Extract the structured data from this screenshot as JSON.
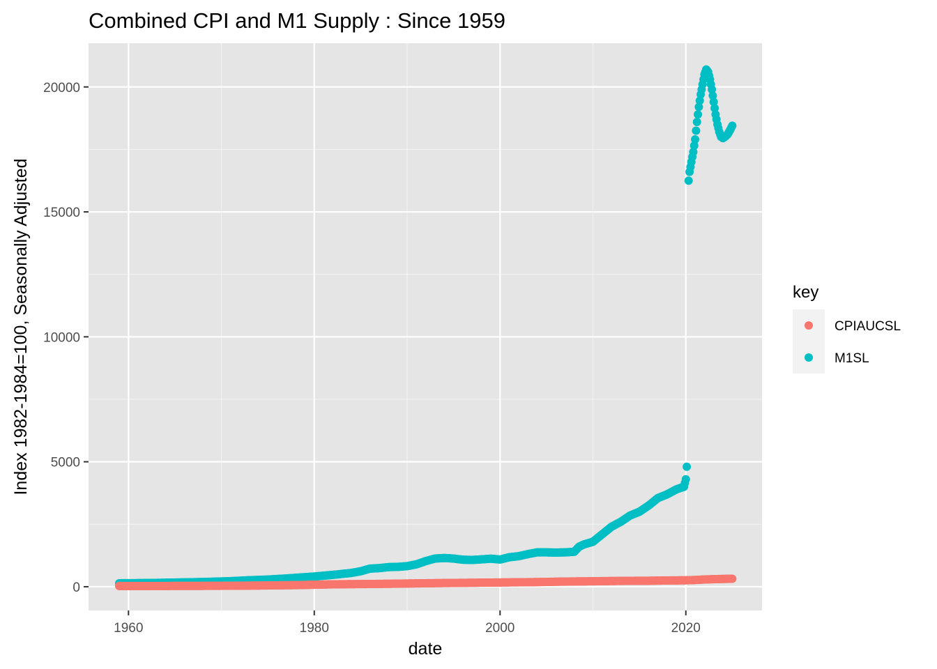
{
  "chart_data": {
    "type": "scatter",
    "title": "Combined CPI and M1 Supply : Since 1959",
    "xlabel": "date",
    "ylabel": "Index 1982-1984=100, Seasonally Adjusted",
    "xlim": [
      1955.7,
      2028.2
    ],
    "ylim": [
      -950,
      21750
    ],
    "x_ticks": [
      1960,
      1980,
      2000,
      2020
    ],
    "y_ticks": [
      0,
      5000,
      10000,
      15000,
      20000
    ],
    "grid": true,
    "background": "#e5e5e5",
    "legend": {
      "title": "key",
      "position": "right",
      "entries": [
        {
          "label": "CPIAUCSL",
          "color": "#f8766d"
        },
        {
          "label": "M1SL",
          "color": "#00bfc4"
        }
      ]
    },
    "series": [
      {
        "name": "CPIAUCSL",
        "color": "#f8766d",
        "points": [
          [
            1959.0,
            29
          ],
          [
            1962.0,
            30
          ],
          [
            1965.0,
            31.5
          ],
          [
            1968.0,
            34.5
          ],
          [
            1970.0,
            38
          ],
          [
            1972.0,
            41.5
          ],
          [
            1974.0,
            48
          ],
          [
            1976.0,
            56
          ],
          [
            1978.0,
            64
          ],
          [
            1980.0,
            80
          ],
          [
            1982.0,
            95
          ],
          [
            1984.0,
            103
          ],
          [
            1986.0,
            109
          ],
          [
            1988.0,
            117
          ],
          [
            1990.0,
            128
          ],
          [
            1992.0,
            139
          ],
          [
            1994.0,
            147
          ],
          [
            1996.0,
            155
          ],
          [
            1998.0,
            162
          ],
          [
            2000.0,
            170
          ],
          [
            2002.0,
            178
          ],
          [
            2004.0,
            186
          ],
          [
            2006.0,
            200
          ],
          [
            2008.0,
            212
          ],
          [
            2010.0,
            218
          ],
          [
            2012.0,
            228
          ],
          [
            2014.0,
            236
          ],
          [
            2016.0,
            240
          ],
          [
            2018.0,
            250
          ],
          [
            2020.0,
            257
          ],
          [
            2021.0,
            270
          ],
          [
            2022.0,
            290
          ],
          [
            2023.0,
            302
          ],
          [
            2024.0,
            312
          ],
          [
            2025.0,
            320
          ]
        ]
      },
      {
        "name": "M1SL",
        "color": "#00bfc4",
        "points": [
          [
            1959.0,
            139
          ],
          [
            1961.0,
            143
          ],
          [
            1963.0,
            153
          ],
          [
            1965.0,
            167
          ],
          [
            1967.0,
            181
          ],
          [
            1969.0,
            199
          ],
          [
            1971.0,
            223
          ],
          [
            1973.0,
            260
          ],
          [
            1975.0,
            287
          ],
          [
            1977.0,
            331
          ],
          [
            1979.0,
            383
          ],
          [
            1980.0,
            408
          ],
          [
            1982.0,
            475
          ],
          [
            1984.0,
            552
          ],
          [
            1985.0,
            620
          ],
          [
            1986.0,
            725
          ],
          [
            1987.0,
            745
          ],
          [
            1988.0,
            786
          ],
          [
            1989.0,
            795
          ],
          [
            1990.0,
            825
          ],
          [
            1991.0,
            897
          ],
          [
            1992.0,
            1025
          ],
          [
            1993.0,
            1129
          ],
          [
            1994.0,
            1150
          ],
          [
            1995.0,
            1127
          ],
          [
            1996.0,
            1081
          ],
          [
            1997.0,
            1072
          ],
          [
            1998.0,
            1095
          ],
          [
            1999.0,
            1122
          ],
          [
            2000.0,
            1088
          ],
          [
            2001.0,
            1180
          ],
          [
            2002.0,
            1220
          ],
          [
            2003.0,
            1306
          ],
          [
            2004.0,
            1376
          ],
          [
            2005.0,
            1374
          ],
          [
            2006.0,
            1367
          ],
          [
            2007.0,
            1374
          ],
          [
            2008.0,
            1400
          ],
          [
            2008.5,
            1600
          ],
          [
            2009.0,
            1690
          ],
          [
            2010.0,
            1800
          ],
          [
            2011.0,
            2100
          ],
          [
            2012.0,
            2400
          ],
          [
            2013.0,
            2600
          ],
          [
            2014.0,
            2850
          ],
          [
            2015.0,
            3000
          ],
          [
            2016.0,
            3250
          ],
          [
            2017.0,
            3550
          ],
          [
            2018.0,
            3700
          ],
          [
            2019.0,
            3900
          ],
          [
            2019.8,
            4000
          ],
          [
            2020.0,
            4300
          ],
          [
            2020.1,
            4800
          ],
          [
            2020.3,
            16250
          ],
          [
            2020.4,
            16600
          ],
          [
            2020.6,
            17000
          ],
          [
            2020.8,
            17400
          ],
          [
            2021.0,
            17900
          ],
          [
            2021.2,
            18600
          ],
          [
            2021.4,
            19200
          ],
          [
            2021.6,
            19700
          ],
          [
            2021.8,
            20100
          ],
          [
            2022.0,
            20500
          ],
          [
            2022.2,
            20700
          ],
          [
            2022.4,
            20600
          ],
          [
            2022.6,
            20300
          ],
          [
            2022.8,
            19900
          ],
          [
            2023.0,
            19400
          ],
          [
            2023.2,
            18900
          ],
          [
            2023.4,
            18500
          ],
          [
            2023.6,
            18200
          ],
          [
            2023.8,
            18000
          ],
          [
            2024.0,
            17950
          ],
          [
            2024.2,
            18000
          ],
          [
            2024.5,
            18100
          ],
          [
            2024.8,
            18300
          ],
          [
            2025.0,
            18450
          ]
        ]
      }
    ]
  }
}
